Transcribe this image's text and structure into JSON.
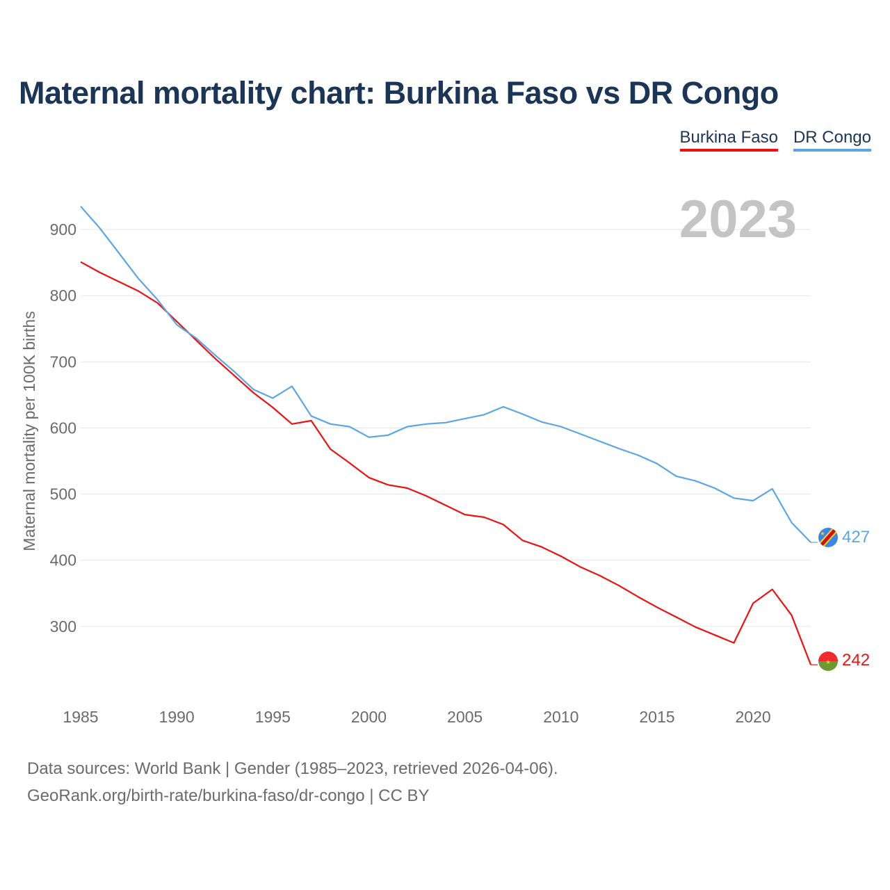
{
  "title": "Maternal mortality chart: Burkina Faso vs DR Congo",
  "legend": [
    {
      "name": "Burkina Faso",
      "color": "#ee1111"
    },
    {
      "name": "DR Congo",
      "color": "#5aa5e6"
    }
  ],
  "chart_data": {
    "type": "line",
    "title": "Maternal mortality chart: Burkina Faso vs DR Congo",
    "ylabel": "Maternal mortality per 100K births",
    "xlabel": "",
    "year_label": "2023",
    "xlim": [
      1985,
      2023
    ],
    "ylim": [
      200,
      940
    ],
    "xticks": [
      1985,
      1990,
      1995,
      2000,
      2005,
      2010,
      2015,
      2020
    ],
    "yticks": [
      300,
      400,
      500,
      600,
      700,
      800,
      900
    ],
    "grid": true,
    "x": [
      1985,
      1986,
      1987,
      1988,
      1989,
      1990,
      1991,
      1992,
      1993,
      1994,
      1995,
      1996,
      1997,
      1998,
      1999,
      2000,
      2001,
      2002,
      2003,
      2004,
      2005,
      2006,
      2007,
      2008,
      2009,
      2010,
      2011,
      2012,
      2013,
      2014,
      2015,
      2016,
      2017,
      2018,
      2019,
      2020,
      2021,
      2022,
      2023
    ],
    "series": [
      {
        "name": "Burkina Faso",
        "color": "#ee1111",
        "end_label": "242",
        "flag": "burkina-faso-flag-icon",
        "values": [
          851,
          835,
          821,
          807,
          789,
          761,
          733,
          705,
          679,
          653,
          631,
          606,
          611,
          568,
          547,
          525,
          514,
          509,
          497,
          483,
          469,
          465,
          454,
          430,
          420,
          406,
          390,
          377,
          362,
          345,
          329,
          314,
          299,
          287,
          275,
          335,
          356,
          317,
          242
        ]
      },
      {
        "name": "DR Congo",
        "color": "#5aa5e6",
        "end_label": "427",
        "flag": "dr-congo-flag-icon",
        "values": [
          935,
          902,
          864,
          826,
          794,
          756,
          736,
          710,
          685,
          658,
          645,
          663,
          618,
          606,
          602,
          586,
          589,
          602,
          606,
          608,
          614,
          620,
          632,
          621,
          609,
          602,
          591,
          580,
          569,
          559,
          546,
          527,
          520,
          509,
          494,
          490,
          508,
          457,
          427
        ]
      }
    ]
  },
  "footer": {
    "line1": "Data sources: World Bank | Gender (1985–2023, retrieved 2026-04-06).",
    "line2": "GeoRank.org/birth-rate/burkina-faso/dr-congo | CC BY"
  }
}
